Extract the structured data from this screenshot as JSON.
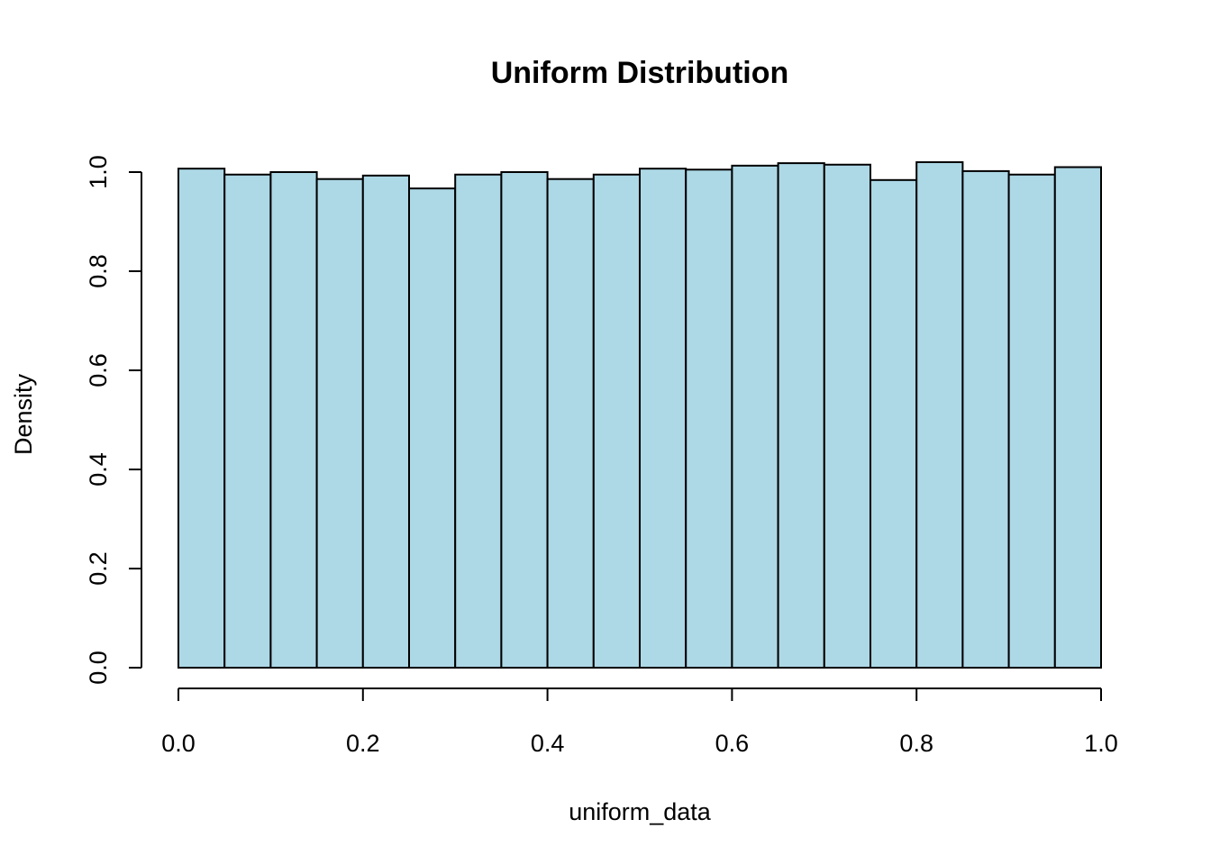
{
  "chart_data": {
    "type": "bar",
    "title": "Uniform Distribution",
    "xlabel": "uniform_data",
    "ylabel": "Density",
    "bin_edges": [
      0.0,
      0.05,
      0.1,
      0.15,
      0.2,
      0.25,
      0.3,
      0.35,
      0.4,
      0.45,
      0.5,
      0.55,
      0.6,
      0.65,
      0.7,
      0.75,
      0.8,
      0.85,
      0.9,
      0.95,
      1.0
    ],
    "values": [
      1.007,
      0.995,
      1.0,
      0.986,
      0.993,
      0.967,
      0.995,
      1.0,
      0.986,
      0.995,
      1.007,
      1.005,
      1.013,
      1.018,
      1.015,
      0.984,
      1.02,
      1.002,
      0.995,
      1.01
    ],
    "xlim": [
      0.0,
      1.0
    ],
    "ylim": [
      0.0,
      1.0
    ],
    "x_ticks": [
      "0.0",
      "0.2",
      "0.4",
      "0.6",
      "0.8",
      "1.0"
    ],
    "y_ticks": [
      "0.0",
      "0.2",
      "0.4",
      "0.6",
      "0.8",
      "1.0"
    ],
    "bar_color": "#add8e6",
    "grid": false,
    "legend": "none"
  }
}
